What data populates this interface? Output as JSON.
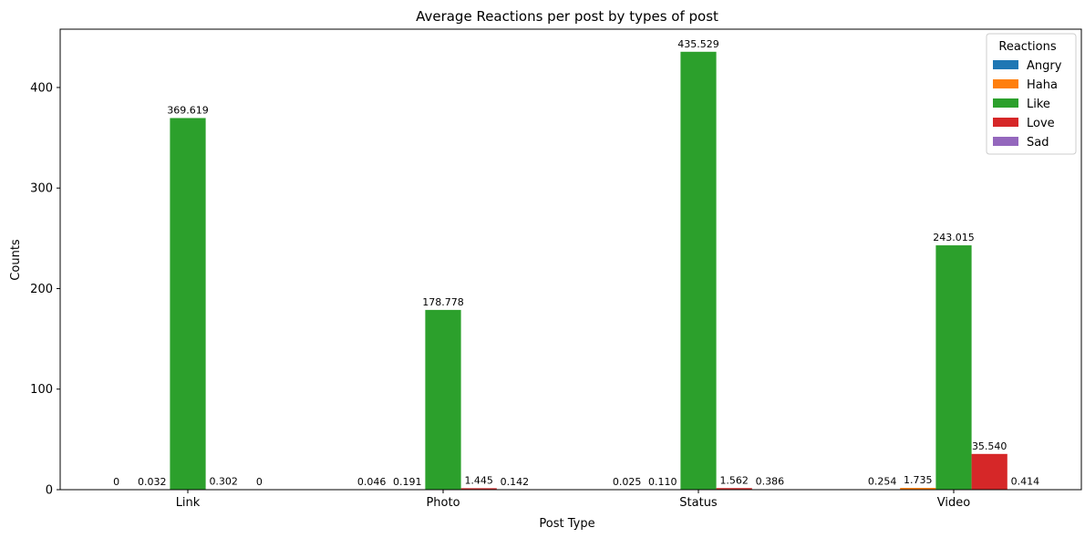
{
  "chart_data": {
    "type": "bar",
    "title": "Average Reactions per post by types of post",
    "xlabel": "Post Type",
    "ylabel": "Counts",
    "categories": [
      "Link",
      "Photo",
      "Status",
      "Video"
    ],
    "ylim": [
      0,
      458
    ],
    "yticks": [
      0,
      100,
      200,
      300,
      400
    ],
    "ytick_labels": [
      "0",
      "100",
      "200",
      "300",
      "400"
    ],
    "grid": false,
    "legend": {
      "title": "Reactions",
      "placement": "top-right"
    },
    "series": [
      {
        "name": "Angry",
        "color": "#1f77b4",
        "values": [
          0,
          0.046,
          0.025,
          0.254
        ],
        "labels": [
          "0",
          "0.046",
          "0.025",
          "0.254"
        ]
      },
      {
        "name": "Haha",
        "color": "#ff7f0e",
        "values": [
          0.032,
          0.191,
          0.11,
          1.735
        ],
        "labels": [
          "0.032",
          "0.191",
          "0.110",
          "1.735"
        ]
      },
      {
        "name": "Like",
        "color": "#2ca02c",
        "values": [
          369.619,
          178.778,
          435.529,
          243.015
        ],
        "labels": [
          "369.619",
          "178.778",
          "435.529",
          "243.015"
        ]
      },
      {
        "name": "Love",
        "color": "#d62728",
        "values": [
          0.302,
          1.445,
          1.562,
          35.54
        ],
        "labels": [
          "0.302",
          "1.445",
          "1.562",
          "35.540"
        ]
      },
      {
        "name": "Sad",
        "color": "#9467bd",
        "values": [
          0,
          0.142,
          0.386,
          0.414
        ],
        "labels": [
          "0",
          "0.142",
          "0.386",
          "0.414"
        ]
      }
    ]
  }
}
